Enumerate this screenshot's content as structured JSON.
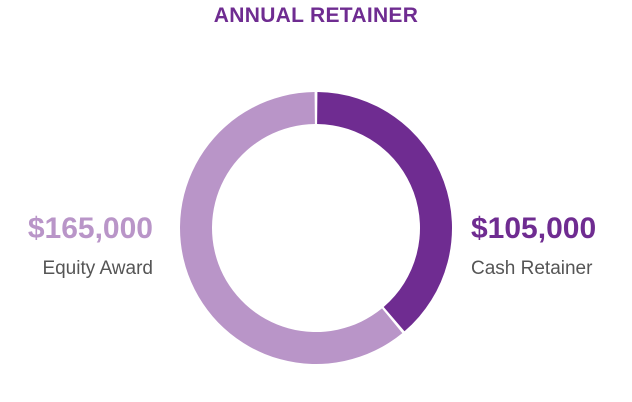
{
  "chart_data": {
    "type": "pie",
    "title": "ANNUAL RETAINER",
    "donut": true,
    "slices": [
      {
        "label": "Cash Retainer",
        "value": 105000,
        "display": "$105,000",
        "color": "#6f2c91"
      },
      {
        "label": "Equity Award",
        "value": 165000,
        "display": "$165,000",
        "color": "#b995c8"
      }
    ]
  },
  "colors": {
    "title": "#6f2c91",
    "label_text": "#555555"
  }
}
